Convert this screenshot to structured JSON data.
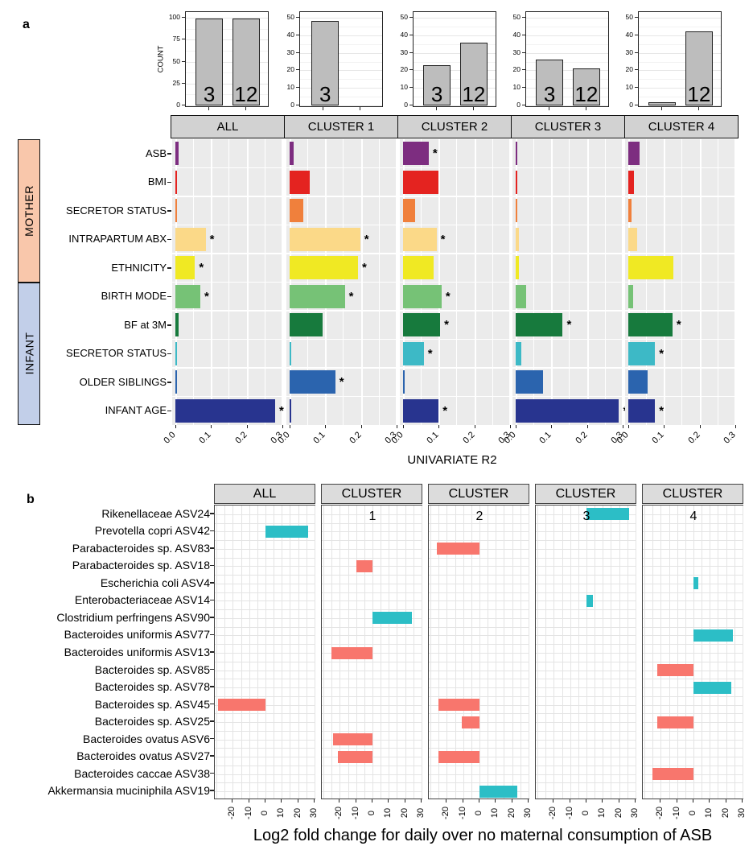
{
  "figure": {
    "panel_a_label": "a",
    "panel_b_label": "b"
  },
  "colors": {
    "count_bar": "#BDBDBD",
    "strip_a_bg": "#D2D2D2",
    "strip_b_bg": "#DCDCDC",
    "panel_a_bg": "#EBEBEB",
    "mother_bg": "#F9C7AB",
    "infant_bg": "#C2CFE9",
    "negative_bar": "#F8766D",
    "positive_bar": "#2CBEC6"
  },
  "chart_data": [
    {
      "id": "counts",
      "type": "bar",
      "ylabel": "COUNT",
      "facets": [
        {
          "facet": "ALL",
          "yticks": [
            0,
            25,
            50,
            75,
            100
          ],
          "ymax": 100,
          "categories": [
            "3",
            "12"
          ],
          "values": [
            99,
            99
          ]
        },
        {
          "facet": "CLUSTER 1",
          "yticks": [
            0,
            10,
            20,
            30,
            40,
            50
          ],
          "ymax": 50,
          "categories": [
            "3"
          ],
          "values": [
            48
          ]
        },
        {
          "facet": "CLUSTER 2",
          "yticks": [
            0,
            10,
            20,
            30,
            40,
            50
          ],
          "ymax": 50,
          "categories": [
            "3",
            "12"
          ],
          "values": [
            23,
            36
          ]
        },
        {
          "facet": "CLUSTER 3",
          "yticks": [
            0,
            10,
            20,
            30,
            40,
            50
          ],
          "ymax": 50,
          "categories": [
            "3",
            "12"
          ],
          "values": [
            26,
            21
          ]
        },
        {
          "facet": "CLUSTER 4",
          "yticks": [
            0,
            10,
            20,
            30,
            40,
            50
          ],
          "ymax": 50,
          "categories": [
            "",
            "12"
          ],
          "values": [
            2,
            42
          ]
        }
      ]
    },
    {
      "id": "univariate_r2",
      "type": "bar",
      "xlabel": "UNIVARIATE R2",
      "xticks": [
        "0.0",
        "0.1",
        "0.2",
        "0.3"
      ],
      "xlim": [
        0,
        0.31
      ],
      "row_groups": [
        {
          "label": "MOTHER",
          "rows": 5
        },
        {
          "label": "INFANT",
          "rows": 5
        }
      ],
      "categories": [
        "ASB",
        "BMI",
        "SECRETOR STATUS",
        "INTRAPARTUM ABX",
        "ETHNICITY",
        "BIRTH MODE",
        "BF at 3M",
        "SECRETOR STATUS",
        "OLDER SIBLINGS",
        "INFANT AGE"
      ],
      "row_colors": [
        "#7D2D80",
        "#E42320",
        "#F0803C",
        "#FBD988",
        "#F0E923",
        "#76C276",
        "#177A3D",
        "#3DB9C6",
        "#2B64AE",
        "#28348F"
      ],
      "series": [
        {
          "name": "ALL",
          "values": [
            0.01,
            0.004,
            0.004,
            0.085,
            0.055,
            0.07,
            0.008,
            0.003,
            0.004,
            0.28
          ],
          "significant": [
            false,
            false,
            false,
            true,
            true,
            true,
            false,
            false,
            false,
            true
          ]
        },
        {
          "name": "CLUSTER 1",
          "values": [
            0.012,
            0.056,
            0.039,
            0.198,
            0.192,
            0.155,
            0.092,
            0.002,
            0.128,
            0.002
          ],
          "significant": [
            false,
            false,
            false,
            true,
            true,
            true,
            false,
            false,
            true,
            false
          ]
        },
        {
          "name": "CLUSTER 2",
          "values": [
            0.072,
            0.1,
            0.034,
            0.094,
            0.086,
            0.108,
            0.104,
            0.058,
            0.004,
            0.1
          ],
          "significant": [
            true,
            false,
            false,
            true,
            false,
            true,
            true,
            true,
            false,
            true
          ]
        },
        {
          "name": "CLUSTER 3",
          "values": [
            0.005,
            0.005,
            0.005,
            0.008,
            0.008,
            0.029,
            0.132,
            0.015,
            0.077,
            0.29
          ],
          "significant": [
            false,
            false,
            false,
            false,
            false,
            false,
            true,
            false,
            false,
            true
          ]
        },
        {
          "name": "CLUSTER 4",
          "values": [
            0.032,
            0.016,
            0.009,
            0.024,
            0.127,
            0.013,
            0.124,
            0.075,
            0.055,
            0.075
          ],
          "significant": [
            false,
            false,
            false,
            false,
            false,
            false,
            true,
            true,
            false,
            true
          ]
        }
      ]
    },
    {
      "id": "log2fc",
      "type": "bar",
      "xlabel": "Log2 fold change for daily over no maternal consumption of ASB",
      "xticks": [
        -20,
        -10,
        0,
        10,
        20,
        30
      ],
      "xlim": [
        -31,
        31
      ],
      "categories": [
        "Rikenellaceae ASV24",
        "Prevotella copri ASV42",
        "Parabacteroides sp. ASV83",
        "Parabacteroides sp. ASV18",
        "Escherichia coli ASV4",
        "Enterobacteriaceae ASV14",
        "Clostridium perfringens ASV90",
        "Bacteroides uniformis ASV77",
        "Bacteroides uniformis ASV13",
        "Bacteroides sp. ASV85",
        "Bacteroides sp. ASV78",
        "Bacteroides sp. ASV45",
        "Bacteroides sp. ASV25",
        "Bacteroides ovatus ASV6",
        "Bacteroides ovatus ASV27",
        "Bacteroides caccae ASV38",
        "Akkermansia muciniphila ASV19"
      ],
      "facets": [
        {
          "strip": "ALL",
          "panel_number": "",
          "bars": [
            {
              "row": 1,
              "value": 26
            },
            {
              "row": 11,
              "value": -29
            }
          ]
        },
        {
          "strip": "CLUSTER",
          "panel_number": "1",
          "bars": [
            {
              "row": 3,
              "value": -10
            },
            {
              "row": 6,
              "value": 24
            },
            {
              "row": 8,
              "value": -25
            },
            {
              "row": 13,
              "value": -24
            },
            {
              "row": 14,
              "value": -21
            }
          ]
        },
        {
          "strip": "CLUSTER",
          "panel_number": "2",
          "bars": [
            {
              "row": 2,
              "value": -26
            },
            {
              "row": 11,
              "value": -25
            },
            {
              "row": 12,
              "value": -11
            },
            {
              "row": 14,
              "value": -25
            },
            {
              "row": 16,
              "value": 23
            }
          ]
        },
        {
          "strip": "CLUSTER",
          "panel_number": "3",
          "bars": [
            {
              "row": 0,
              "value": 26
            },
            {
              "row": 5,
              "value": 4
            }
          ]
        },
        {
          "strip": "CLUSTER",
          "panel_number": "4",
          "bars": [
            {
              "row": 4,
              "value": 3
            },
            {
              "row": 7,
              "value": 24
            },
            {
              "row": 9,
              "value": -22
            },
            {
              "row": 10,
              "value": 23
            },
            {
              "row": 12,
              "value": -22
            },
            {
              "row": 15,
              "value": -25
            }
          ]
        }
      ]
    }
  ]
}
